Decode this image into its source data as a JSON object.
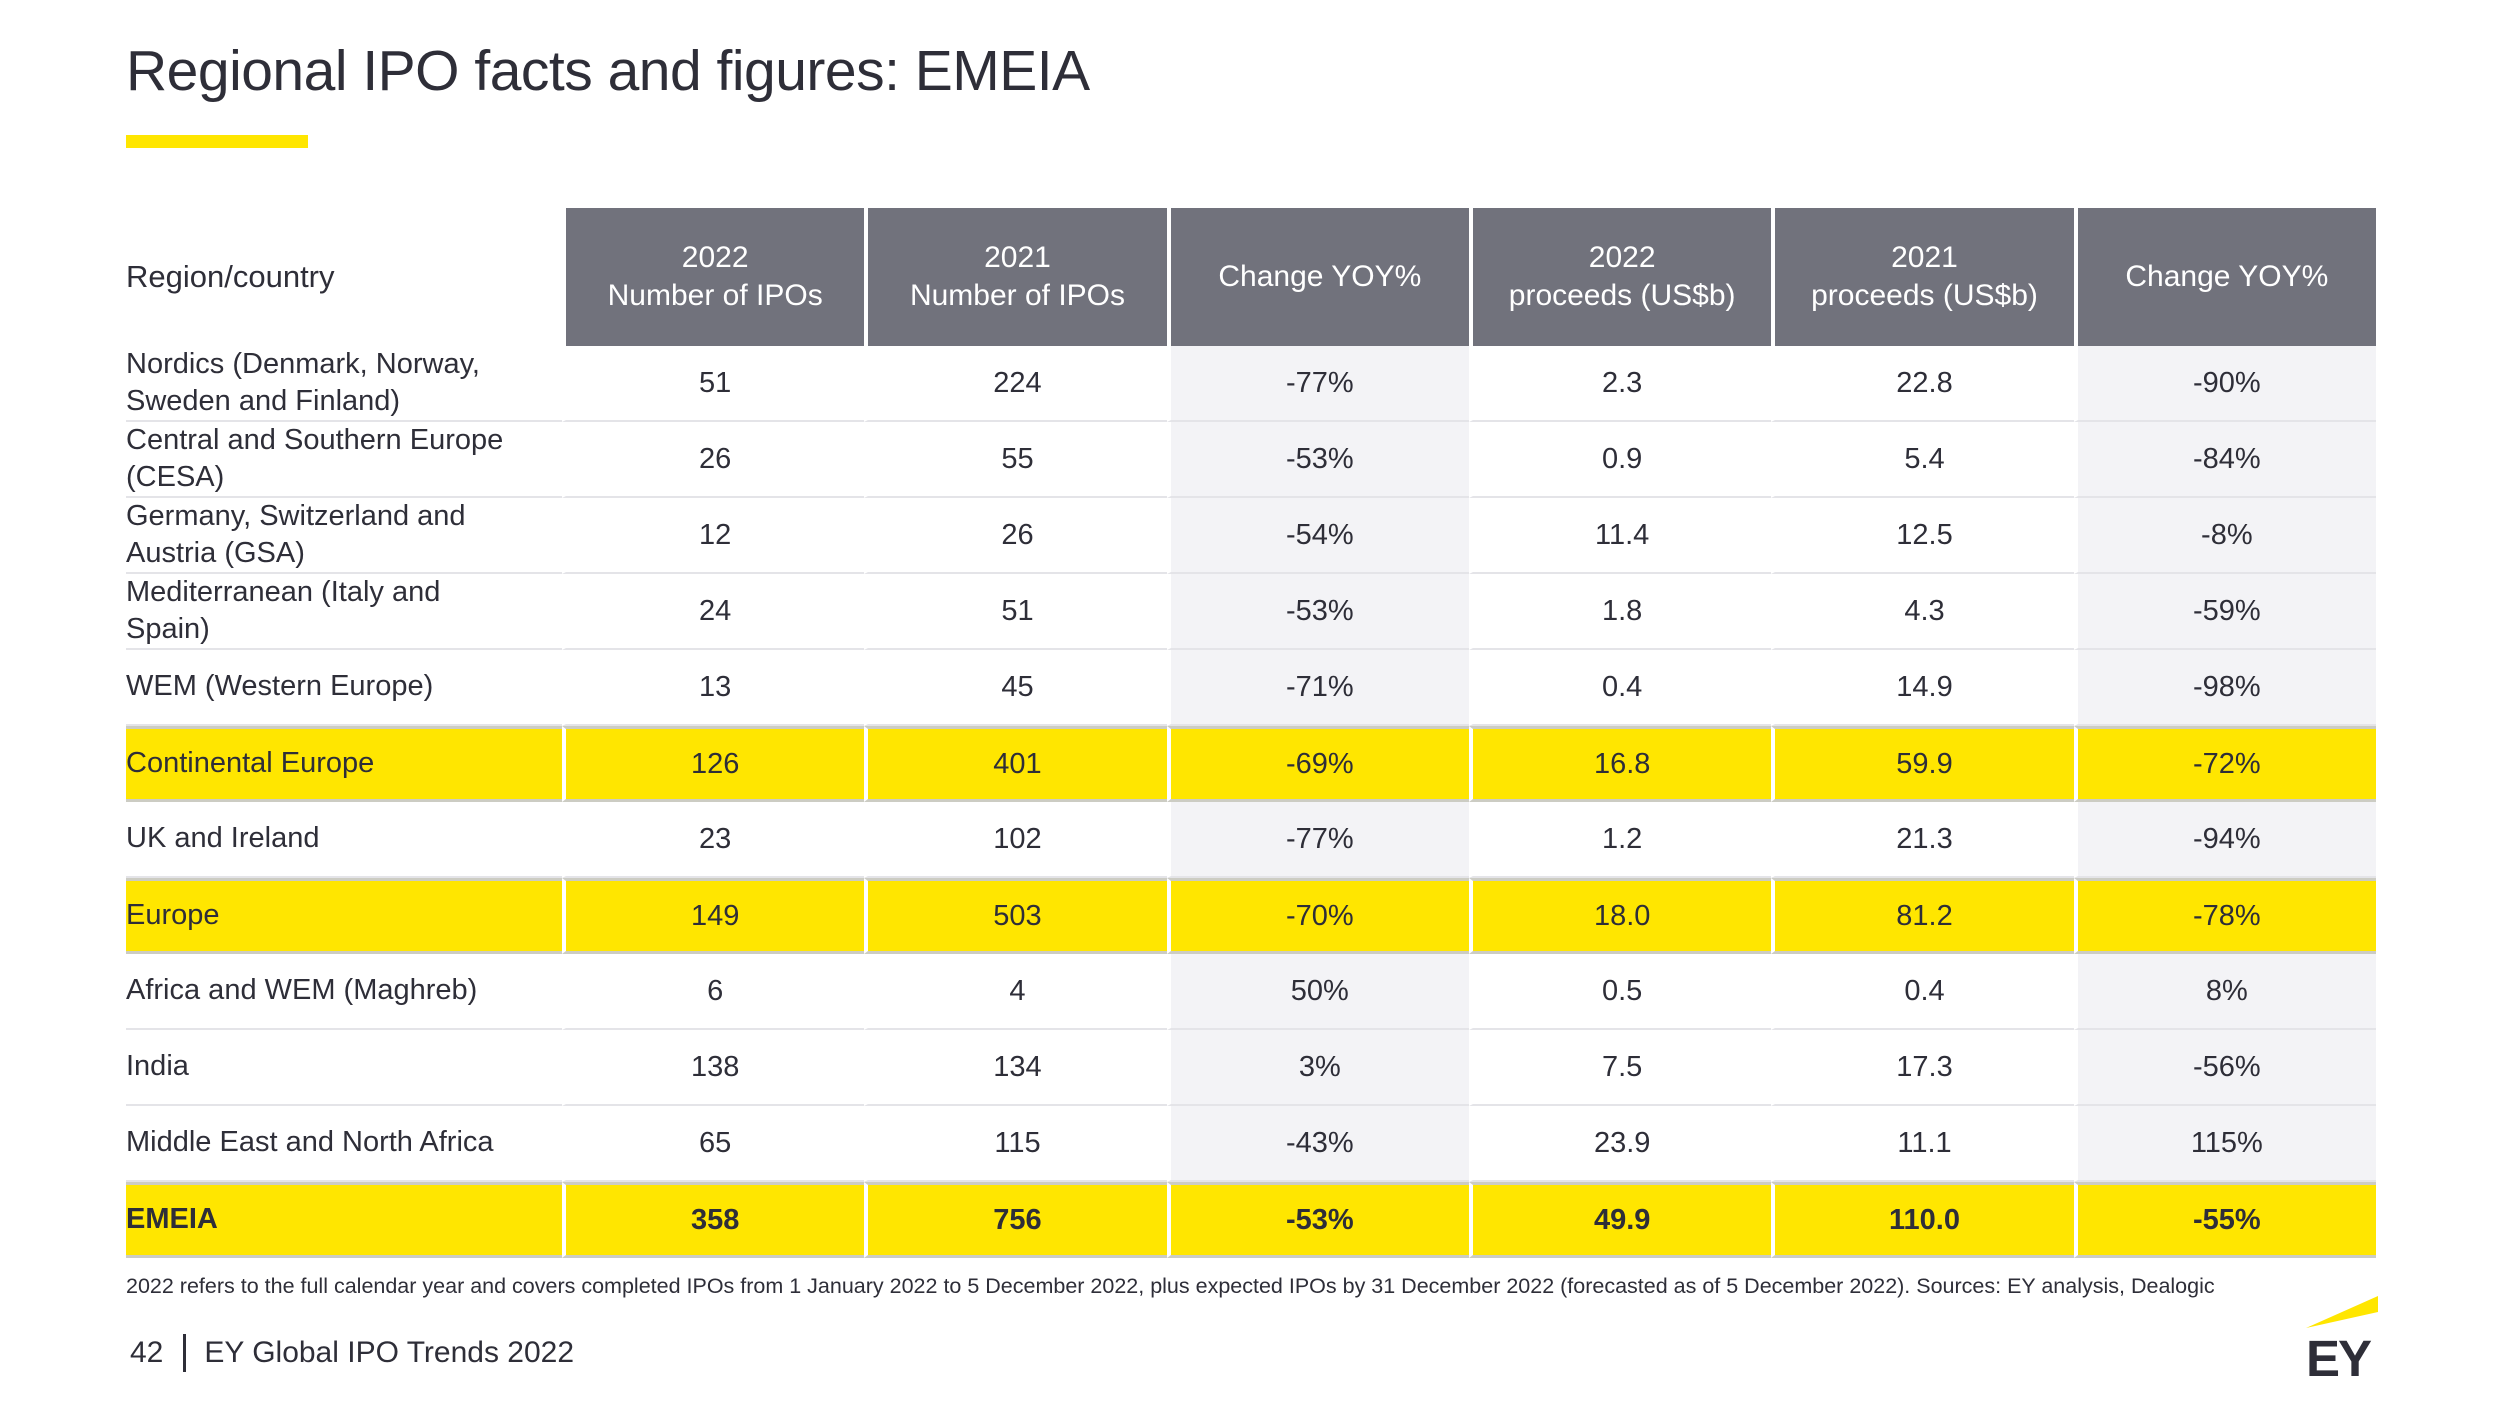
{
  "slide": {
    "title": "Regional IPO facts and figures: EMEIA",
    "footnote": "2022 refers to the full calendar year and covers completed IPOs from 1 January 2022 to 5 December 2022, plus expected IPOs by 31 December 2022 (forecasted as of 5 December 2022). Sources: EY analysis, Dealogic",
    "page_number": "42",
    "footer_text": "EY Global IPO Trends 2022",
    "logo_text": "EY"
  },
  "colors": {
    "accent_yellow": "#ffe600",
    "header_gray": "#71727c",
    "light_column": "#f3f3f6",
    "text_dark": "#2e2e38"
  },
  "table": {
    "region_header": "Region/country",
    "columns": [
      {
        "line1": "2022",
        "line2": "Number of IPOs"
      },
      {
        "line1": "2021",
        "line2": "Number of IPOs"
      },
      {
        "line1": "Change YOY%",
        "line2": ""
      },
      {
        "line1": "2022",
        "line2": "proceeds (US$b)"
      },
      {
        "line1": "2021",
        "line2": "proceeds (US$b)"
      },
      {
        "line1": "Change YOY%",
        "line2": ""
      }
    ],
    "rows": [
      {
        "region": "Nordics (Denmark, Norway, Sweden and Finland)",
        "values": [
          "51",
          "224",
          "-77%",
          "2.3",
          "22.8",
          "-90%"
        ],
        "highlight": false,
        "bold": false
      },
      {
        "region": "Central and Southern Europe (CESA)",
        "values": [
          "26",
          "55",
          "-53%",
          "0.9",
          "5.4",
          "-84%"
        ],
        "highlight": false,
        "bold": false
      },
      {
        "region": "Germany, Switzerland and Austria (GSA)",
        "values": [
          "12",
          "26",
          "-54%",
          "11.4",
          "12.5",
          "-8%"
        ],
        "highlight": false,
        "bold": false
      },
      {
        "region": "Mediterranean (Italy and Spain)",
        "values": [
          "24",
          "51",
          "-53%",
          "1.8",
          "4.3",
          "-59%"
        ],
        "highlight": false,
        "bold": false
      },
      {
        "region": "WEM (Western Europe)",
        "values": [
          "13",
          "45",
          "-71%",
          "0.4",
          "14.9",
          "-98%"
        ],
        "highlight": false,
        "bold": false
      },
      {
        "region": "Continental Europe",
        "values": [
          "126",
          "401",
          "-69%",
          "16.8",
          "59.9",
          "-72%"
        ],
        "highlight": true,
        "bold": false
      },
      {
        "region": "UK and Ireland",
        "values": [
          "23",
          "102",
          "-77%",
          "1.2",
          "21.3",
          "-94%"
        ],
        "highlight": false,
        "bold": false
      },
      {
        "region": "Europe",
        "values": [
          "149",
          "503",
          "-70%",
          "18.0",
          "81.2",
          "-78%"
        ],
        "highlight": true,
        "bold": false
      },
      {
        "region": "Africa and WEM (Maghreb)",
        "values": [
          "6",
          "4",
          "50%",
          "0.5",
          "0.4",
          "8%"
        ],
        "highlight": false,
        "bold": false
      },
      {
        "region": "India",
        "values": [
          "138",
          "134",
          "3%",
          "7.5",
          "17.3",
          "-56%"
        ],
        "highlight": false,
        "bold": false
      },
      {
        "region": "Middle East and North Africa",
        "values": [
          "65",
          "115",
          "-43%",
          "23.9",
          "11.1",
          "115%"
        ],
        "highlight": false,
        "bold": false
      },
      {
        "region": "EMEIA",
        "values": [
          "358",
          "756",
          "-53%",
          "49.9",
          "110.0",
          "-55%"
        ],
        "highlight": true,
        "bold": true
      }
    ]
  }
}
